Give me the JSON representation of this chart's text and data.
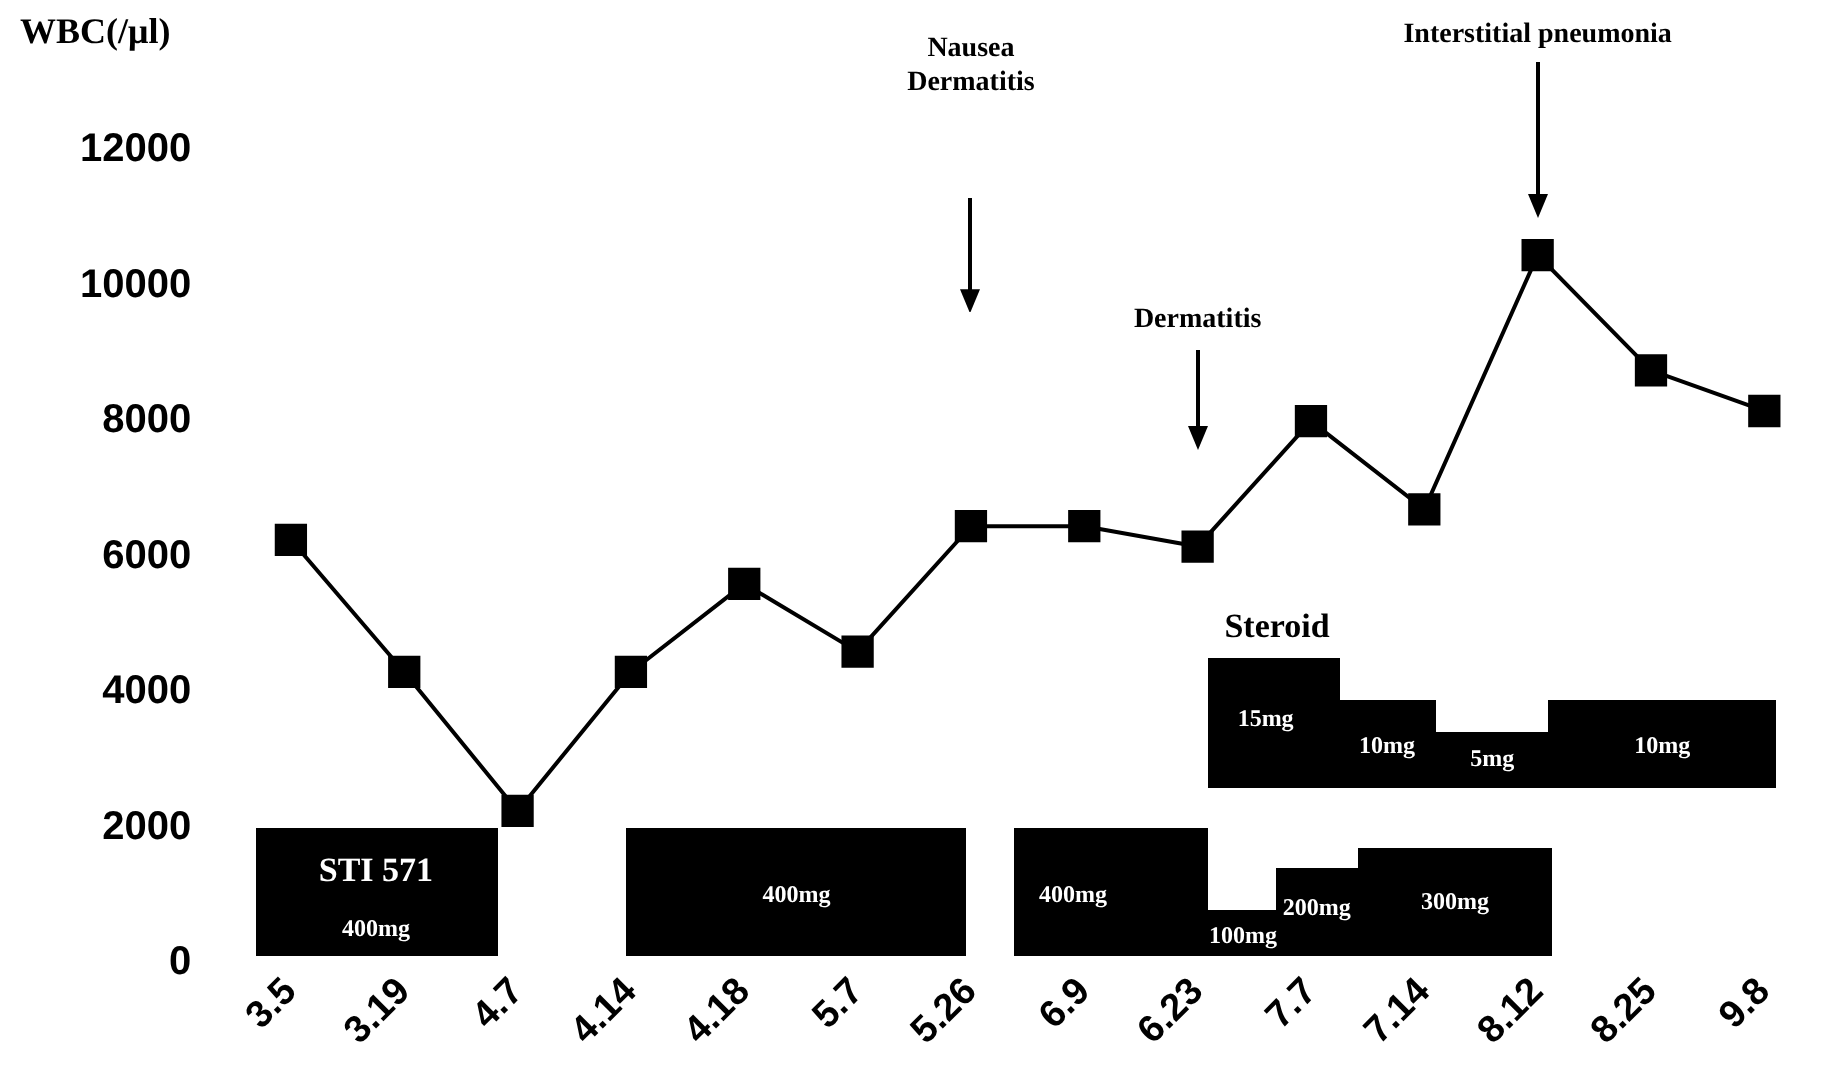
{
  "chart_data": {
    "type": "line",
    "ylabel": "WBC(/μl)",
    "categories": [
      "3.5",
      "3.19",
      "4.7",
      "4.14",
      "4.18",
      "5.7",
      "5.26",
      "6.9",
      "6.23",
      "7.7",
      "7.14",
      "8.12",
      "8.25",
      "9.8"
    ],
    "series": [
      {
        "color": "#000000",
        "values": [
          6250,
          4300,
          2250,
          4300,
          5600,
          4600,
          6450,
          6450,
          6150,
          8000,
          6700,
          10450,
          8750,
          8150
        ]
      }
    ],
    "ylim": [
      0,
      12000
    ],
    "yticks": [
      0,
      2000,
      4000,
      6000,
      8000,
      10000,
      12000
    ],
    "grid": false,
    "legend": false,
    "marker": "square",
    "line_style": "solid",
    "annotations": [
      "STI 571",
      "400mg",
      "400mg",
      "400mg",
      "100mg",
      "200mg",
      "300mg",
      "Steroid",
      "15mg",
      "10mg",
      "5mg",
      "10mg",
      "Nausea\nDermatitis",
      "Dermatitis",
      "Interstitial pneumonia"
    ]
  }
}
